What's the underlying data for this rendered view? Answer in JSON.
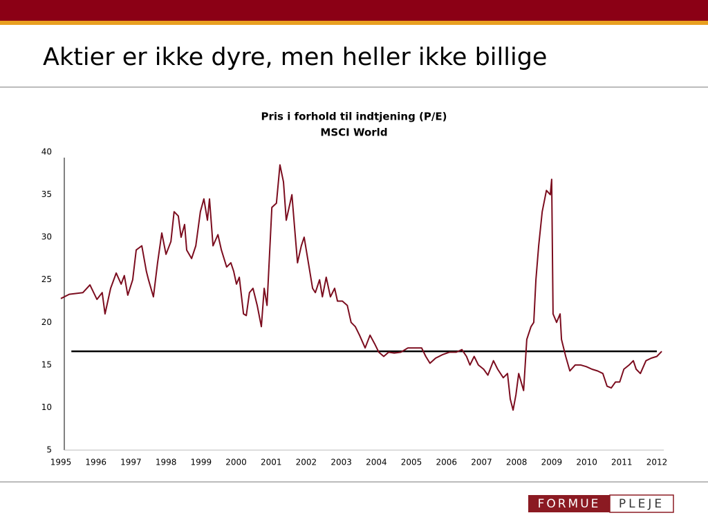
{
  "slide": {
    "title": "Aktier er ikke dyre, men heller ikke billige",
    "logo": [
      "FORMUE",
      "PLEJE"
    ]
  },
  "chart_data": {
    "type": "line",
    "title": "Pris i forhold til indtjening (P/E)",
    "subtitle": "MSCI World",
    "xlim": [
      1995,
      2012.2
    ],
    "ylim": [
      5,
      40
    ],
    "xticks": [
      1995,
      1996,
      1997,
      1998,
      1999,
      2000,
      2001,
      2002,
      2003,
      2004,
      2005,
      2006,
      2007,
      2008,
      2009,
      2010,
      2011,
      2012
    ],
    "yticks": [
      5,
      10,
      15,
      20,
      25,
      30,
      35,
      40
    ],
    "reference_line": {
      "value": 16.6,
      "x": [
        1995.3,
        2012.0
      ],
      "color": "#000000"
    },
    "series": [
      {
        "color": "#7b0c1e",
        "x": [
          1995.0,
          1995.24,
          1995.63,
          1995.83,
          1996.03,
          1996.18,
          1996.26,
          1996.42,
          1996.58,
          1996.72,
          1996.81,
          1996.91,
          1997.05,
          1997.15,
          1997.31,
          1997.44,
          1997.5,
          1997.64,
          1997.76,
          1997.88,
          1998.0,
          1998.14,
          1998.23,
          1998.35,
          1998.43,
          1998.53,
          1998.59,
          1998.73,
          1998.85,
          1998.98,
          1999.08,
          1999.18,
          1999.24,
          1999.34,
          1999.48,
          1999.58,
          1999.73,
          1999.85,
          1999.93,
          2000.01,
          2000.09,
          2000.21,
          2000.29,
          2000.38,
          2000.48,
          2000.6,
          2000.72,
          2000.8,
          2000.88,
          2001.02,
          2001.15,
          2001.25,
          2001.35,
          2001.43,
          2001.51,
          2001.59,
          2001.67,
          2001.75,
          2001.86,
          2001.94,
          2002.04,
          2002.18,
          2002.26,
          2002.38,
          2002.46,
          2002.57,
          2002.69,
          2002.81,
          2002.89,
          2003.03,
          2003.17,
          2003.28,
          2003.4,
          2003.52,
          2003.68,
          2003.82,
          2003.95,
          2004.07,
          2004.21,
          2004.35,
          2004.51,
          2004.7,
          2004.9,
          2005.1,
          2005.29,
          2005.41,
          2005.53,
          2005.69,
          2005.88,
          2006.08,
          2006.28,
          2006.44,
          2006.57,
          2006.67,
          2006.79,
          2006.91,
          2007.06,
          2007.18,
          2007.34,
          2007.46,
          2007.62,
          2007.74,
          2007.82,
          2007.9,
          2007.98,
          2008.06,
          2008.2,
          2008.29,
          2008.41,
          2008.49,
          2008.55,
          2008.63,
          2008.73,
          2008.85,
          2008.96,
          2009.0,
          2009.04,
          2009.14,
          2009.24,
          2009.28,
          2009.4,
          2009.52,
          2009.67,
          2009.83,
          2009.99,
          2010.15,
          2010.31,
          2010.46,
          2010.58,
          2010.7,
          2010.82,
          2010.94,
          2011.06,
          2011.21,
          2011.33,
          2011.41,
          2011.53,
          2011.69,
          2011.84,
          2012.0,
          2012.14
        ],
        "values": [
          22.8,
          23.3,
          23.5,
          24.4,
          22.7,
          23.5,
          21.0,
          24.0,
          25.8,
          24.5,
          25.5,
          23.2,
          25.0,
          28.5,
          29.0,
          26.0,
          25.0,
          23.0,
          27.0,
          30.5,
          28.0,
          29.5,
          33.0,
          32.5,
          30.0,
          31.5,
          28.5,
          27.5,
          29.0,
          33.0,
          34.5,
          32.0,
          34.5,
          29.0,
          30.3,
          28.5,
          26.5,
          27.0,
          26.0,
          24.5,
          25.3,
          21.0,
          20.8,
          23.5,
          24.0,
          22.0,
          19.5,
          24.0,
          22.0,
          33.5,
          34.0,
          38.5,
          36.5,
          32.0,
          33.5,
          35.0,
          31.0,
          27.0,
          29.0,
          30.0,
          27.5,
          24.0,
          23.5,
          25.0,
          23.0,
          25.3,
          23.0,
          24.0,
          22.5,
          22.5,
          22.0,
          20.0,
          19.5,
          18.5,
          17.0,
          18.5,
          17.5,
          16.5,
          16.0,
          16.5,
          16.4,
          16.5,
          17.0,
          17.0,
          17.0,
          16.0,
          15.2,
          15.8,
          16.2,
          16.5,
          16.5,
          16.8,
          16.0,
          15.0,
          16.0,
          15.0,
          14.5,
          13.8,
          15.5,
          14.5,
          13.5,
          14.0,
          11.0,
          9.7,
          11.5,
          14.0,
          12.0,
          18.0,
          19.5,
          20.0,
          25.0,
          29.0,
          33.0,
          35.5,
          35.0,
          36.8,
          21.0,
          20.0,
          21.0,
          18.0,
          16.0,
          14.3,
          15.0,
          15.0,
          14.8,
          14.5,
          14.3,
          14.0,
          12.5,
          12.3,
          13.0,
          13.0,
          14.5,
          15.0,
          15.5,
          14.5,
          14.0,
          15.5,
          15.8,
          16.0,
          16.6
        ]
      }
    ]
  }
}
